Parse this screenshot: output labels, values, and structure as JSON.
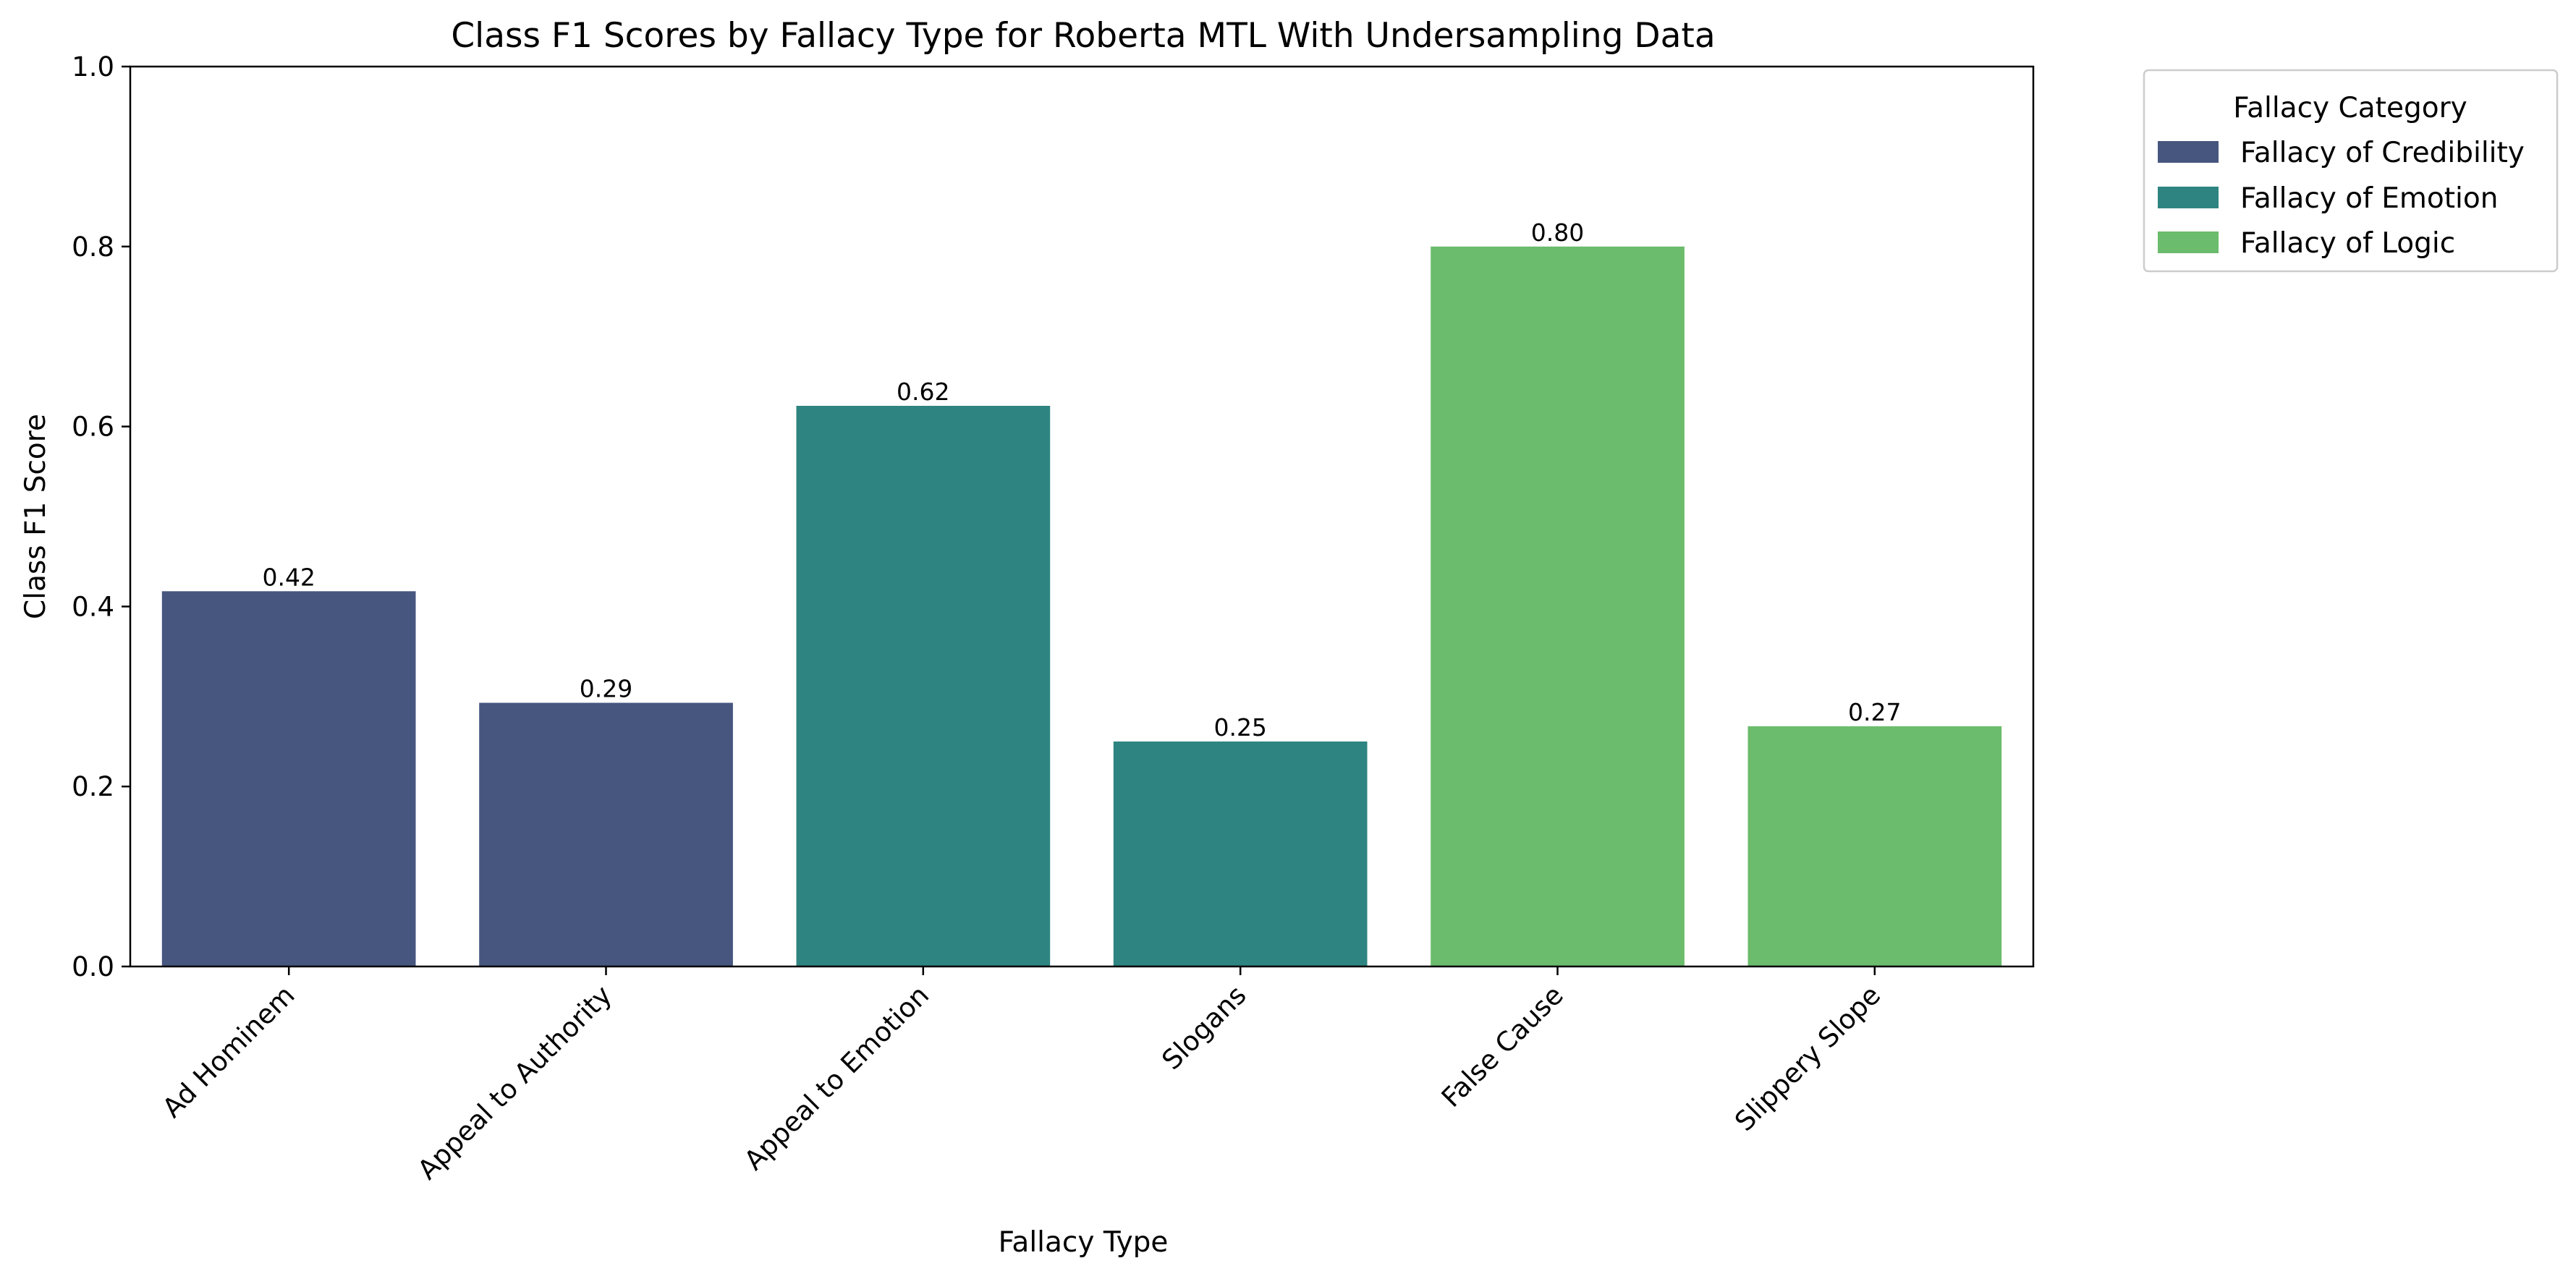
{
  "chart_data": {
    "type": "bar",
    "title": "Class F1 Scores by Fallacy Type for Roberta MTL With Undersampling Data",
    "xlabel": "Fallacy Type",
    "ylabel": "Class F1 Score",
    "ylim": [
      0,
      1.0
    ],
    "yticks": [
      "0.0",
      "0.2",
      "0.4",
      "0.6",
      "0.8",
      "1.0"
    ],
    "grid": false,
    "categories": [
      "Ad Hominem",
      "Appeal to Authority",
      "Appeal to Emotion",
      "Slogans",
      "False Cause",
      "Slippery Slope"
    ],
    "values": [
      0.417,
      0.293,
      0.623,
      0.25,
      0.8,
      0.267
    ],
    "value_labels": [
      "0.42",
      "0.29",
      "0.62",
      "0.25",
      "0.80",
      "0.27"
    ],
    "bar_category": [
      "Fallacy of Credibility",
      "Fallacy of Credibility",
      "Fallacy of Emotion",
      "Fallacy of Emotion",
      "Fallacy of Logic",
      "Fallacy of Logic"
    ],
    "legend": {
      "title": "Fallacy Category",
      "placement": "outside-top-right",
      "entries": [
        {
          "name": "Fallacy of Credibility",
          "color": "#46567f"
        },
        {
          "name": "Fallacy of Emotion",
          "color": "#2e8480"
        },
        {
          "name": "Fallacy of Logic",
          "color": "#6bbc6c"
        }
      ]
    }
  }
}
